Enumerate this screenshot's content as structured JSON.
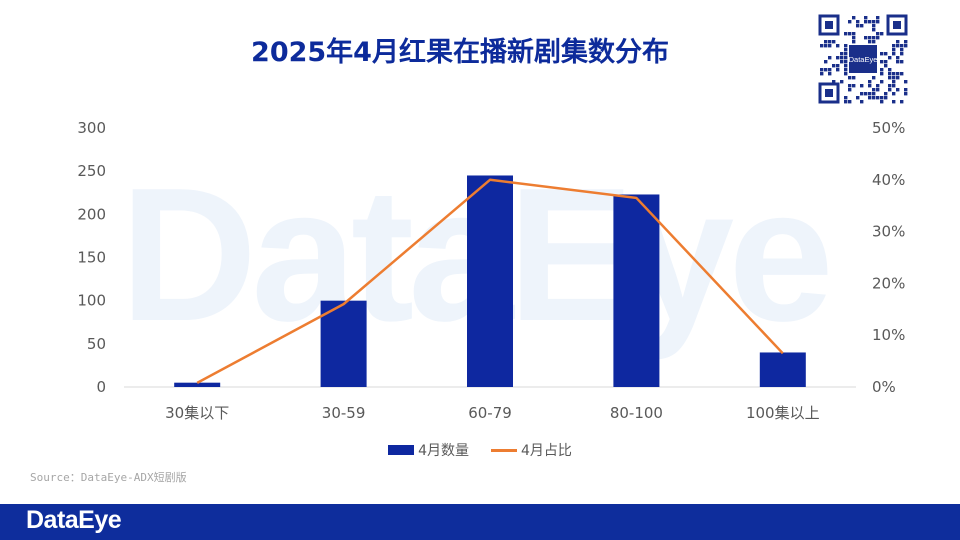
{
  "title": "2025年4月红果在播新剧集数分布",
  "watermark_text": "DataEye",
  "qr_logo_text": "DataEye",
  "source": "Source：DataEye-ADX短剧版",
  "footer_logo": "DataEye",
  "colors": {
    "title": "#0d2b9b",
    "bar": "#0e28a0",
    "line": "#ed7d31",
    "footer": "#0e2d9c"
  },
  "chart_data": {
    "type": "bar",
    "categories": [
      "30集以下",
      "30-59",
      "60-79",
      "80-100",
      "100集以上"
    ],
    "series": [
      {
        "name": "4月数量",
        "type": "bar",
        "axis": "left",
        "values": [
          5,
          100,
          245,
          223,
          40
        ]
      },
      {
        "name": "4月占比",
        "type": "line",
        "axis": "right",
        "values": [
          0.8,
          16,
          40,
          36.5,
          6.5
        ]
      }
    ],
    "y_left": {
      "ylim": [
        0,
        300
      ],
      "ticks": [
        "0",
        "50",
        "100",
        "150",
        "200",
        "250",
        "300"
      ]
    },
    "y_right": {
      "ylim": [
        0,
        50
      ],
      "ticks": [
        "0%",
        "10%",
        "20%",
        "30%",
        "40%",
        "50%"
      ]
    },
    "grid": false,
    "legend_position": "bottom"
  }
}
